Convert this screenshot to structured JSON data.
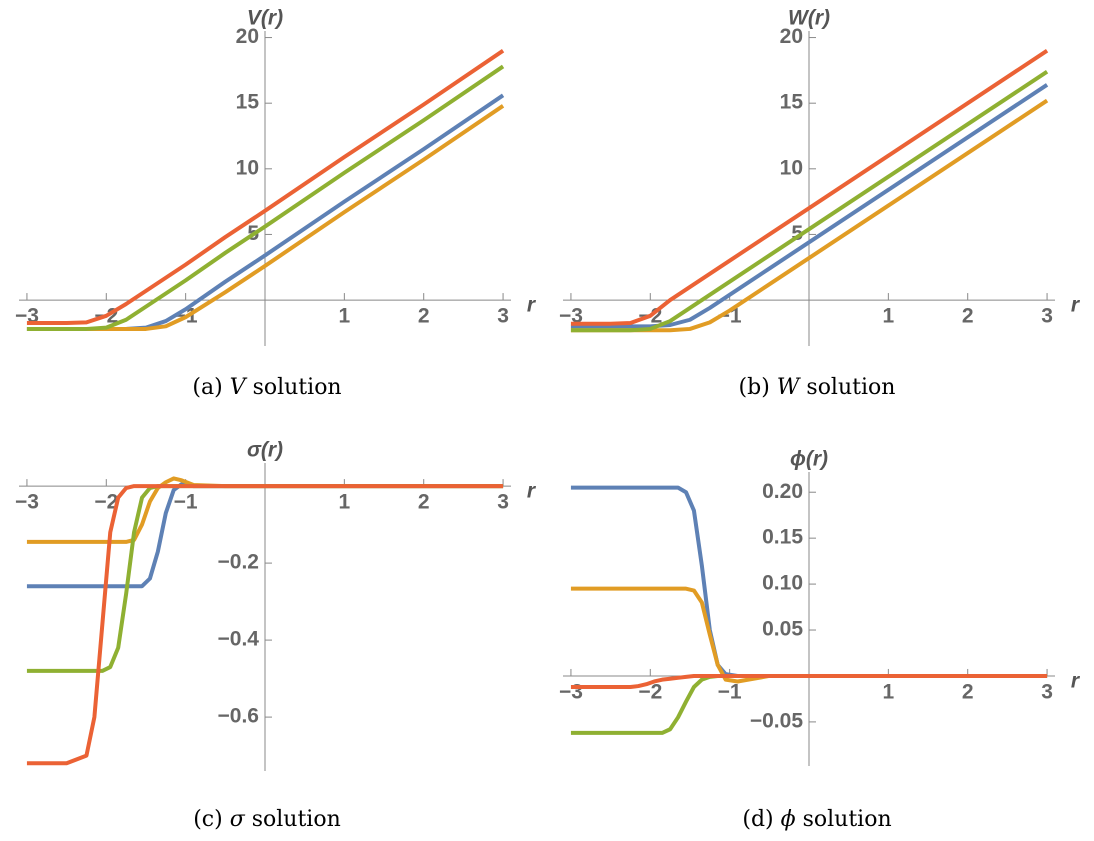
{
  "chart_data": [
    {
      "type": "line",
      "ylabel": "V(r)",
      "xlabel": "r",
      "caption": [
        "(a)",
        "V",
        "solution"
      ],
      "xlim": [
        -3.1,
        3.1
      ],
      "ylim": [
        -3.5,
        20.5
      ],
      "xticks": [
        {
          "value": -3,
          "label": "−3"
        },
        {
          "value": -2,
          "label": "−2"
        },
        {
          "value": -1,
          "label": "−1"
        },
        1,
        2,
        3
      ],
      "yticks": [
        5,
        10,
        15,
        20
      ],
      "x": [
        -3,
        -2.5,
        -2.25,
        -2,
        -1.75,
        -1.5,
        -1.25,
        -1,
        -0.5,
        0,
        1,
        2,
        3
      ],
      "series": [
        {
          "color": "#5E81B5",
          "values": [
            -2.2,
            -2.2,
            -2.2,
            -2.2,
            -2.2,
            -2.1,
            -1.6,
            -0.7,
            1.4,
            3.4,
            7.5,
            11.5,
            15.6
          ]
        },
        {
          "color": "#E19C24",
          "values": [
            -2.2,
            -2.2,
            -2.2,
            -2.2,
            -2.2,
            -2.2,
            -2.0,
            -1.3,
            0.6,
            2.6,
            6.7,
            10.7,
            14.8
          ]
        },
        {
          "color": "#8FB032",
          "values": [
            -2.2,
            -2.2,
            -2.2,
            -2.1,
            -1.5,
            -0.5,
            0.5,
            1.5,
            3.6,
            5.6,
            9.7,
            13.7,
            17.8
          ]
        },
        {
          "color": "#EB6235",
          "values": [
            -1.75,
            -1.75,
            -1.7,
            -1.2,
            -0.3,
            0.7,
            1.7,
            2.7,
            4.8,
            6.8,
            10.9,
            14.9,
            19.0
          ]
        }
      ]
    },
    {
      "type": "line",
      "ylabel": "W(r)",
      "xlabel": "r",
      "caption": [
        "(b)",
        "W",
        "solution"
      ],
      "xlim": [
        -3.1,
        3.1
      ],
      "ylim": [
        -3.5,
        20.5
      ],
      "xticks": [
        {
          "value": -3,
          "label": "−3"
        },
        {
          "value": -2,
          "label": "−2"
        },
        {
          "value": -1,
          "label": "−1"
        },
        1,
        2,
        3
      ],
      "yticks": [
        5,
        10,
        15,
        20
      ],
      "x": [
        -3,
        -2.5,
        -2.25,
        -2,
        -1.75,
        -1.5,
        -1.25,
        -1,
        -0.5,
        0,
        1,
        2,
        3
      ],
      "series": [
        {
          "color": "#5E81B5",
          "values": [
            -2.0,
            -2.0,
            -2.0,
            -2.0,
            -1.9,
            -1.5,
            -0.6,
            0.4,
            2.4,
            4.4,
            8.4,
            12.4,
            16.4
          ]
        },
        {
          "color": "#E19C24",
          "values": [
            -2.3,
            -2.3,
            -2.3,
            -2.3,
            -2.3,
            -2.2,
            -1.7,
            -0.8,
            1.2,
            3.2,
            7.2,
            11.2,
            15.2
          ]
        },
        {
          "color": "#8FB032",
          "values": [
            -2.3,
            -2.3,
            -2.3,
            -2.2,
            -1.6,
            -0.6,
            0.4,
            1.4,
            3.4,
            5.4,
            9.4,
            13.4,
            17.4
          ]
        },
        {
          "color": "#EB6235",
          "values": [
            -1.8,
            -1.8,
            -1.75,
            -1.2,
            0,
            1.0,
            2.0,
            3.0,
            5.0,
            7.0,
            11.0,
            15.0,
            19.0
          ]
        }
      ]
    },
    {
      "type": "line",
      "ylabel": "σ(r)",
      "xlabel": "r",
      "caption": [
        "(c)",
        "σ",
        "solution"
      ],
      "xlim": [
        -3.1,
        3.1
      ],
      "ylim": [
        -0.74,
        0.06
      ],
      "xticks": [
        {
          "value": -3,
          "label": "−3"
        },
        {
          "value": -2,
          "label": "−2"
        },
        {
          "value": -1,
          "label": "−1"
        },
        1,
        2,
        3
      ],
      "yticks": [
        {
          "value": -0.2,
          "label": "−0.2"
        },
        {
          "value": -0.4,
          "label": "−0.4"
        },
        {
          "value": -0.6,
          "label": "−0.6"
        }
      ],
      "x": [
        -3,
        -2.5,
        -2.25,
        -2.15,
        -2.05,
        -1.95,
        -1.85,
        -1.75,
        -1.65,
        -1.55,
        -1.45,
        -1.35,
        -1.25,
        -1.15,
        -1.05,
        -0.9,
        -0.5,
        0,
        1,
        2,
        3
      ],
      "series": [
        {
          "color": "#5E81B5",
          "values": [
            -0.26,
            -0.26,
            -0.26,
            -0.26,
            -0.26,
            -0.26,
            -0.26,
            -0.26,
            -0.26,
            -0.26,
            -0.24,
            -0.17,
            -0.07,
            -0.01,
            0.005,
            0,
            0,
            0,
            0,
            0,
            0
          ]
        },
        {
          "color": "#E19C24",
          "values": [
            -0.145,
            -0.145,
            -0.145,
            -0.145,
            -0.145,
            -0.145,
            -0.145,
            -0.145,
            -0.14,
            -0.1,
            -0.04,
            -0.005,
            0.01,
            0.02,
            0.015,
            0.003,
            0,
            0,
            0,
            0,
            0
          ]
        },
        {
          "color": "#8FB032",
          "values": [
            -0.48,
            -0.48,
            -0.48,
            -0.48,
            -0.48,
            -0.47,
            -0.42,
            -0.28,
            -0.12,
            -0.03,
            -0.005,
            0,
            0,
            0,
            0,
            0,
            0,
            0,
            0,
            0,
            0
          ]
        },
        {
          "color": "#EB6235",
          "values": [
            -0.72,
            -0.72,
            -0.7,
            -0.6,
            -0.36,
            -0.12,
            -0.03,
            -0.005,
            0,
            0,
            0,
            0,
            0,
            0,
            0,
            0,
            0,
            0,
            0,
            0,
            0
          ]
        }
      ]
    },
    {
      "type": "line",
      "ylabel": "ϕ(r)",
      "xlabel": "r",
      "caption": [
        "(d)",
        "ϕ",
        "solution"
      ],
      "xlim": [
        -3.1,
        3.1
      ],
      "ylim": [
        -0.098,
        0.222
      ],
      "xticks": [
        {
          "value": -3,
          "label": "−3"
        },
        {
          "value": -2,
          "label": "−2"
        },
        {
          "value": -1,
          "label": "−1"
        },
        1,
        2,
        3
      ],
      "yticks": [
        {
          "value": -0.05,
          "label": "−0.05"
        },
        0.05,
        {
          "value": 0.1,
          "label": "0.10"
        },
        0.15,
        {
          "value": 0.2,
          "label": "0.20"
        }
      ],
      "x": [
        -3,
        -2.5,
        -2.25,
        -2.15,
        -2.05,
        -1.95,
        -1.85,
        -1.75,
        -1.65,
        -1.55,
        -1.45,
        -1.35,
        -1.25,
        -1.15,
        -1.05,
        -0.9,
        -0.5,
        0,
        1,
        2,
        3
      ],
      "series": [
        {
          "color": "#5E81B5",
          "values": [
            0.205,
            0.205,
            0.205,
            0.205,
            0.205,
            0.205,
            0.205,
            0.205,
            0.205,
            0.2,
            0.18,
            0.12,
            0.05,
            0.012,
            0.002,
            0,
            0,
            0,
            0,
            0,
            0
          ]
        },
        {
          "color": "#E19C24",
          "values": [
            0.095,
            0.095,
            0.095,
            0.095,
            0.095,
            0.095,
            0.095,
            0.095,
            0.095,
            0.095,
            0.093,
            0.08,
            0.045,
            0.012,
            -0.004,
            -0.006,
            0,
            0,
            0,
            0,
            0
          ]
        },
        {
          "color": "#8FB032",
          "values": [
            -0.062,
            -0.062,
            -0.062,
            -0.062,
            -0.062,
            -0.062,
            -0.062,
            -0.058,
            -0.045,
            -0.028,
            -0.012,
            -0.004,
            -0.001,
            0,
            0,
            0,
            0,
            0,
            0,
            0,
            0
          ]
        },
        {
          "color": "#EB6235",
          "values": [
            -0.012,
            -0.012,
            -0.012,
            -0.011,
            -0.009,
            -0.006,
            -0.004,
            -0.003,
            -0.002,
            -0.001,
            0,
            0,
            0,
            0,
            0,
            0,
            0,
            0,
            0,
            0,
            0
          ]
        }
      ]
    }
  ]
}
